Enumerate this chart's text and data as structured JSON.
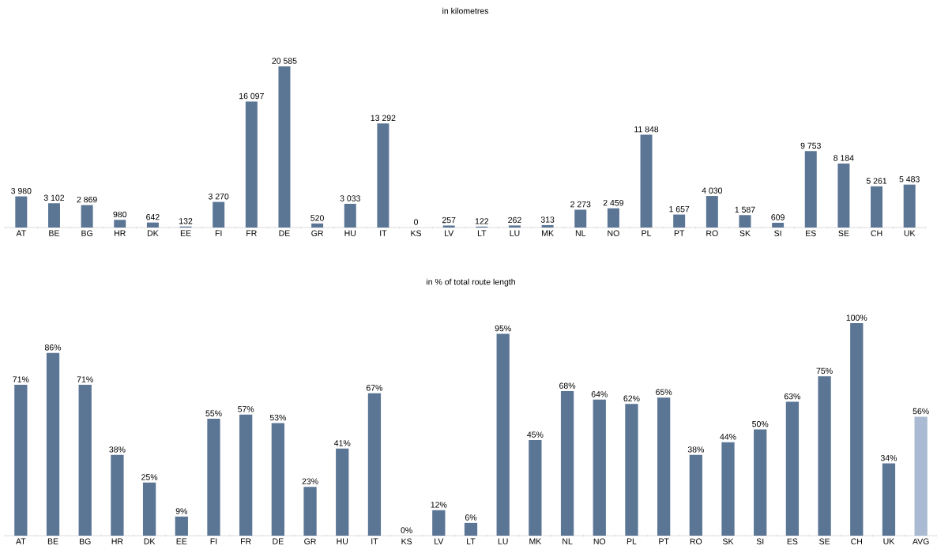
{
  "chart_data": [
    {
      "type": "bar",
      "title": "in kilometres",
      "categories": [
        "AT",
        "BE",
        "BG",
        "HR",
        "DK",
        "EE",
        "FI",
        "FR",
        "DE",
        "GR",
        "HU",
        "IT",
        "KS",
        "LV",
        "LT",
        "LU",
        "MK",
        "NL",
        "NO",
        "PL",
        "PT",
        "RO",
        "SK",
        "SI",
        "ES",
        "SE",
        "CH",
        "UK"
      ],
      "values": [
        3980,
        3102,
        2869,
        980,
        642,
        132,
        3270,
        16097,
        20585,
        520,
        3033,
        13292,
        0,
        257,
        122,
        262,
        313,
        2273,
        2459,
        11848,
        1657,
        4030,
        1587,
        609,
        9753,
        8184,
        5261,
        5483
      ],
      "value_labels": [
        "3 980",
        "3 102",
        "2 869",
        "980",
        "642",
        "132",
        "3 270",
        "16 097",
        "20 585",
        "520",
        "3 033",
        "13 292",
        "0",
        "257",
        "122",
        "262",
        "313",
        "2 273",
        "2 459",
        "11 848",
        "1 657",
        "4 030",
        "1 587",
        "609",
        "9 753",
        "8 184",
        "5 261",
        "5 483"
      ],
      "color": "#5b7595"
    },
    {
      "type": "bar",
      "title": "in % of total route length",
      "categories": [
        "AT",
        "BE",
        "BG",
        "HR",
        "DK",
        "EE",
        "FI",
        "FR",
        "DE",
        "GR",
        "HU",
        "IT",
        "KS",
        "LV",
        "LT",
        "LU",
        "MK",
        "NL",
        "NO",
        "PL",
        "PT",
        "RO",
        "SK",
        "SI",
        "ES",
        "SE",
        "CH",
        "UK",
        "AVG"
      ],
      "values": [
        71,
        86,
        71,
        38,
        25,
        9,
        55,
        57,
        53,
        23,
        41,
        67,
        0,
        12,
        6,
        95,
        45,
        68,
        64,
        62,
        65,
        38,
        44,
        50,
        63,
        75,
        100,
        34,
        56
      ],
      "value_labels": [
        "71%",
        "86%",
        "71%",
        "38%",
        "25%",
        "9%",
        "55%",
        "57%",
        "53%",
        "23%",
        "41%",
        "67%",
        "0%",
        "12%",
        "6%",
        "95%",
        "45%",
        "68%",
        "64%",
        "62%",
        "65%",
        "38%",
        "44%",
        "50%",
        "63%",
        "75%",
        "100%",
        "34%",
        "56%"
      ],
      "colors": [
        "#5b7595",
        "#5b7595",
        "#5b7595",
        "#5b7595",
        "#5b7595",
        "#5b7595",
        "#5b7595",
        "#5b7595",
        "#5b7595",
        "#5b7595",
        "#5b7595",
        "#5b7595",
        "#5b7595",
        "#5b7595",
        "#5b7595",
        "#5b7595",
        "#5b7595",
        "#5b7595",
        "#5b7595",
        "#5b7595",
        "#5b7595",
        "#5b7595",
        "#5b7595",
        "#5b7595",
        "#5b7595",
        "#5b7595",
        "#5b7595",
        "#5b7595",
        "#a9bad2"
      ]
    }
  ]
}
